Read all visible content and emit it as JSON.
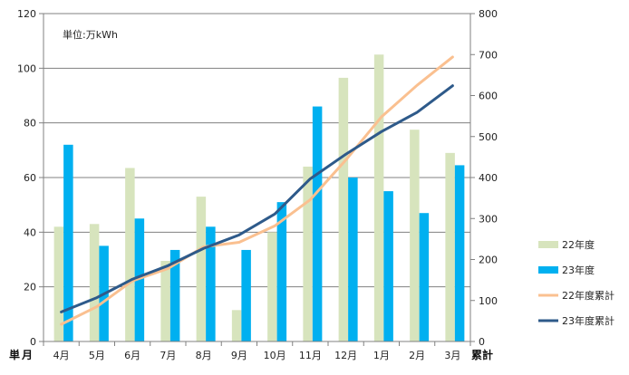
{
  "chart_data": {
    "type": "bar",
    "unit_note": "単位:万kWh",
    "categories": [
      "4月",
      "5月",
      "6月",
      "7月",
      "8月",
      "9月",
      "10月",
      "11月",
      "12月",
      "1月",
      "2月",
      "3月"
    ],
    "xlabel": "月",
    "ylabel_left": "単",
    "ylabel_right": "累計",
    "ylim_left": [
      0,
      120
    ],
    "ylim_right": [
      0,
      800
    ],
    "yticks_left": [
      0,
      20,
      40,
      60,
      80,
      100,
      120
    ],
    "yticks_right": [
      0,
      100,
      200,
      300,
      400,
      500,
      600,
      700,
      800
    ],
    "grid": true,
    "legend_position": "right",
    "series": [
      {
        "name": "22年度",
        "kind": "bar",
        "axis": "left",
        "color": "#d7e4bd",
        "values": [
          42,
          43,
          63.5,
          29.5,
          53,
          11.5,
          40,
          64,
          96.5,
          105,
          77.5,
          69
        ]
      },
      {
        "name": "23年度",
        "kind": "bar",
        "axis": "left",
        "color": "#00b0f0",
        "values": [
          72,
          35,
          45,
          33.5,
          42,
          33.5,
          51,
          86,
          60,
          55,
          47,
          64.5
        ]
      },
      {
        "name": "22年度累計",
        "kind": "line",
        "axis": "right",
        "color": "#fac090",
        "values": [
          42,
          85,
          148,
          178,
          231,
          242,
          282,
          346,
          443,
          548,
          625,
          694
        ]
      },
      {
        "name": "23年度累計",
        "kind": "line",
        "axis": "right",
        "color": "#2e5a8a",
        "values": [
          72,
          107,
          152,
          185,
          227,
          260,
          311,
          397,
          457,
          512,
          559,
          624
        ]
      }
    ]
  }
}
